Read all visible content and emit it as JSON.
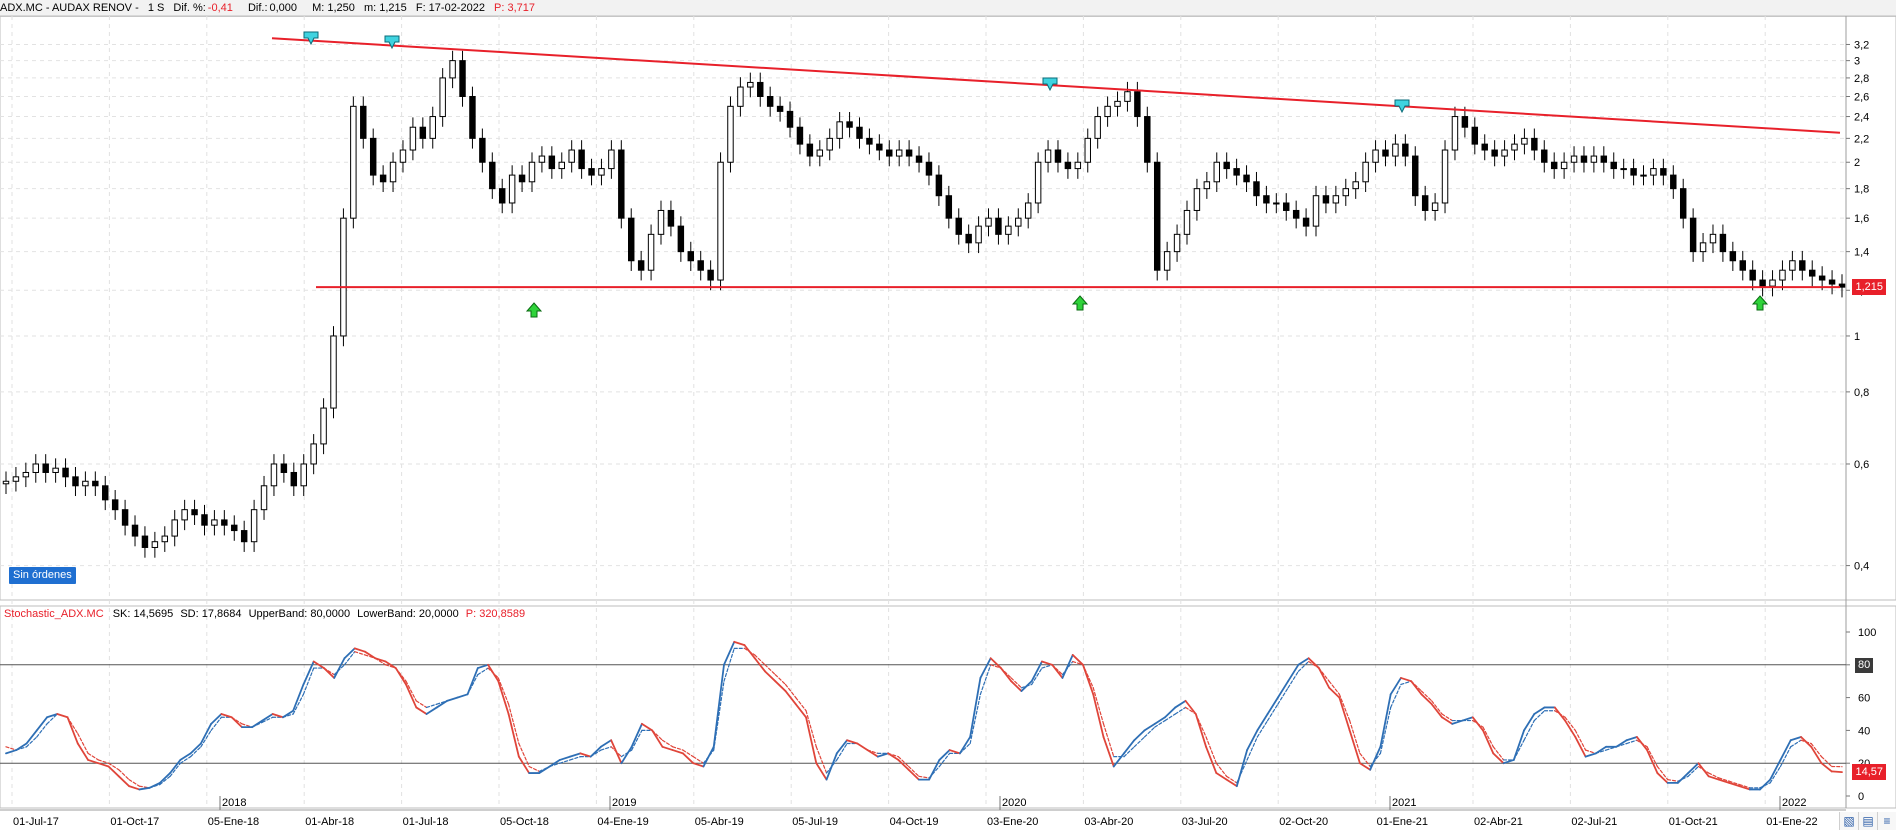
{
  "header": {
    "symbol": "ADX.MC - AUDAX RENOV -",
    "period": "1 S",
    "dif_pct_label": "Dif. %:",
    "dif_pct_value": "-0,41",
    "dif_label": "Dif.:",
    "dif_value": "0,000",
    "max": "M: 1,250",
    "min": "m: 1,215",
    "date": "F: 17-02-2022",
    "price": "P: 3,717"
  },
  "badge": "Sin órdenes",
  "indicator": {
    "name": "Stochastic_ADX.MC",
    "sk": "SK: 14,5695",
    "sd": "SD: 17,8684",
    "upper": "UpperBand: 80,0000",
    "lower": "LowerBand: 20,0000",
    "p": "P: 320,8589",
    "tag80": "80",
    "last": "14,57"
  },
  "price_tag": "1,215",
  "chart_data": [
    {
      "type": "candlestick",
      "title": "ADX.MC - AUDAX RENOV - 1 S",
      "y_scale": "log",
      "ylim": [
        0.36,
        3.5
      ],
      "y_ticks": [
        "0,4",
        "0,6",
        "0,8",
        "1",
        "1,2",
        "1,4",
        "1,6",
        "1,8",
        "2",
        "2,2",
        "2,4",
        "2,6",
        "2,8",
        "3",
        "3,2"
      ],
      "x_year_labels": [
        "2018",
        "2019",
        "2020",
        "2021",
        "2022"
      ],
      "x_labels": [
        "01-Jul-17",
        "01-Oct-17",
        "05-Ene-18",
        "01-Abr-18",
        "01-Jul-18",
        "05-Oct-18",
        "04-Ene-19",
        "05-Abr-19",
        "05-Jul-19",
        "04-Oct-19",
        "03-Ene-20",
        "03-Abr-20",
        "03-Jul-20",
        "02-Oct-20",
        "01-Ene-21",
        "02-Abr-21",
        "02-Jul-21",
        "01-Oct-21",
        "01-Ene-22"
      ],
      "closes_weekly": [
        0.56,
        0.57,
        0.58,
        0.6,
        0.58,
        0.59,
        0.57,
        0.55,
        0.56,
        0.55,
        0.52,
        0.5,
        0.47,
        0.45,
        0.43,
        0.44,
        0.45,
        0.48,
        0.5,
        0.49,
        0.47,
        0.48,
        0.47,
        0.46,
        0.44,
        0.5,
        0.55,
        0.6,
        0.58,
        0.55,
        0.6,
        0.65,
        0.75,
        1.0,
        1.6,
        2.5,
        2.2,
        1.9,
        1.85,
        2.0,
        2.1,
        2.3,
        2.2,
        2.4,
        2.8,
        3.0,
        2.6,
        2.2,
        2.0,
        1.8,
        1.7,
        1.9,
        1.85,
        2.0,
        2.05,
        1.95,
        2.0,
        2.1,
        1.95,
        1.9,
        1.95,
        2.1,
        1.6,
        1.35,
        1.3,
        1.5,
        1.65,
        1.55,
        1.4,
        1.35,
        1.3,
        1.25,
        2.0,
        2.5,
        2.7,
        2.75,
        2.6,
        2.5,
        2.45,
        2.3,
        2.15,
        2.05,
        2.1,
        2.2,
        2.35,
        2.3,
        2.2,
        2.15,
        2.1,
        2.05,
        2.1,
        2.05,
        2.0,
        1.9,
        1.75,
        1.6,
        1.5,
        1.45,
        1.55,
        1.6,
        1.5,
        1.55,
        1.6,
        1.7,
        2.0,
        2.1,
        2.0,
        1.95,
        2.0,
        2.2,
        2.4,
        2.5,
        2.55,
        2.65,
        2.4,
        2.0,
        1.3,
        1.4,
        1.5,
        1.65,
        1.8,
        1.85,
        2.0,
        1.95,
        1.9,
        1.85,
        1.75,
        1.7,
        1.7,
        1.65,
        1.6,
        1.55,
        1.75,
        1.7,
        1.75,
        1.8,
        1.85,
        2.0,
        2.1,
        2.05,
        2.15,
        2.05,
        1.75,
        1.65,
        1.7,
        2.1,
        2.4,
        2.3,
        2.15,
        2.1,
        2.05,
        2.1,
        2.15,
        2.2,
        2.1,
        2.0,
        1.95,
        2.0,
        2.05,
        2.0,
        2.05,
        2.0,
        1.95,
        1.95,
        1.9,
        1.9,
        1.95,
        1.9,
        1.8,
        1.6,
        1.4,
        1.45,
        1.5,
        1.4,
        1.35,
        1.3,
        1.25,
        1.22,
        1.25,
        1.3,
        1.35,
        1.3,
        1.27,
        1.25,
        1.23,
        1.215
      ]
    },
    {
      "type": "line",
      "title": "Stochastic_ADX.MC",
      "ylim": [
        0,
        100
      ],
      "y_ticks": [
        "0",
        "20",
        "40",
        "60",
        "80",
        "100"
      ],
      "bands": [
        80,
        20
      ],
      "series": [
        {
          "name": "SK",
          "last": 14.5695
        },
        {
          "name": "SD",
          "last": 17.8684
        }
      ],
      "sk_values": [
        26,
        28,
        32,
        40,
        48,
        50,
        48,
        32,
        22,
        20,
        18,
        12,
        6,
        4,
        5,
        8,
        14,
        22,
        26,
        32,
        44,
        50,
        48,
        42,
        42,
        46,
        50,
        48,
        52,
        68,
        82,
        78,
        72,
        84,
        90,
        88,
        84,
        82,
        78,
        68,
        54,
        50,
        54,
        58,
        60,
        62,
        78,
        80,
        70,
        50,
        24,
        14,
        14,
        18,
        22,
        24,
        26,
        24,
        30,
        34,
        20,
        30,
        44,
        40,
        30,
        28,
        26,
        20,
        18,
        30,
        80,
        94,
        92,
        84,
        76,
        70,
        64,
        56,
        48,
        20,
        10,
        26,
        34,
        32,
        28,
        24,
        26,
        22,
        16,
        10,
        10,
        22,
        28,
        26,
        36,
        72,
        84,
        78,
        70,
        64,
        70,
        82,
        80,
        72,
        86,
        80,
        62,
        36,
        18,
        26,
        34,
        40,
        44,
        48,
        54,
        58,
        50,
        30,
        14,
        10,
        6,
        28,
        40,
        50,
        60,
        70,
        80,
        84,
        78,
        66,
        60,
        40,
        20,
        16,
        30,
        62,
        72,
        70,
        62,
        56,
        48,
        44,
        46,
        48,
        40,
        26,
        20,
        22,
        40,
        50,
        54,
        54,
        46,
        36,
        24,
        26,
        30,
        30,
        34,
        36,
        28,
        14,
        8,
        8,
        14,
        20,
        12,
        10,
        8,
        6,
        4,
        4,
        10,
        22,
        34,
        36,
        30,
        20,
        15,
        14.57
      ],
      "sd_values": [
        30,
        28,
        30,
        36,
        44,
        50,
        48,
        38,
        26,
        22,
        20,
        16,
        10,
        6,
        5,
        7,
        12,
        20,
        24,
        30,
        40,
        48,
        48,
        44,
        42,
        45,
        48,
        48,
        50,
        62,
        78,
        78,
        74,
        80,
        88,
        86,
        84,
        80,
        78,
        70,
        58,
        54,
        56,
        58,
        60,
        62,
        74,
        78,
        72,
        56,
        32,
        18,
        15,
        18,
        20,
        22,
        24,
        24,
        28,
        30,
        24,
        28,
        40,
        40,
        34,
        30,
        28,
        24,
        20,
        28,
        70,
        90,
        90,
        86,
        80,
        74,
        68,
        60,
        52,
        30,
        14,
        22,
        32,
        32,
        28,
        26,
        26,
        24,
        18,
        12,
        11,
        18,
        26,
        26,
        32,
        62,
        80,
        78,
        72,
        66,
        68,
        78,
        80,
        74,
        82,
        80,
        66,
        44,
        24,
        24,
        30,
        36,
        42,
        46,
        50,
        54,
        50,
        36,
        20,
        12,
        8,
        22,
        36,
        46,
        56,
        66,
        76,
        82,
        78,
        70,
        62,
        46,
        26,
        18,
        26,
        54,
        68,
        70,
        64,
        58,
        50,
        46,
        46,
        46,
        42,
        30,
        22,
        22,
        34,
        46,
        52,
        52,
        48,
        40,
        28,
        26,
        28,
        30,
        32,
        34,
        30,
        18,
        10,
        9,
        12,
        18,
        14,
        11,
        9,
        7,
        5,
        5,
        8,
        18,
        30,
        34,
        32,
        24,
        18,
        17.87
      ]
    }
  ]
}
